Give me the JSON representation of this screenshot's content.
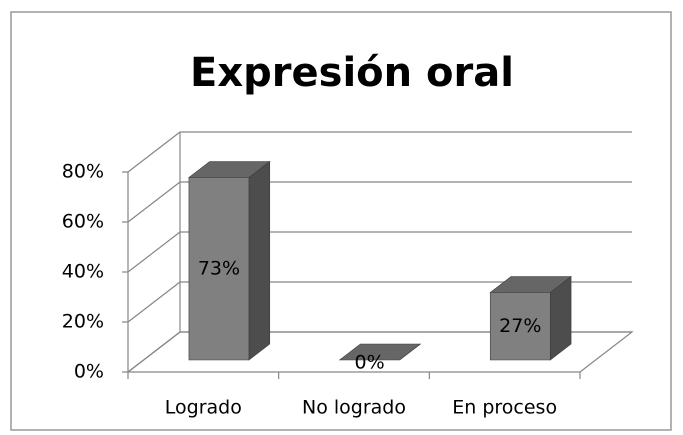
{
  "chart_data": {
    "type": "bar3d",
    "title": "Expresión oral",
    "categories": [
      "Logrado",
      "No logrado",
      "En proceso"
    ],
    "values": [
      73,
      0,
      27
    ],
    "value_labels": [
      "73%",
      "0%",
      "27%"
    ],
    "color": "#808080",
    "ylim": [
      0,
      80
    ],
    "yticks": [
      {
        "value": 0,
        "label": "0%"
      },
      {
        "value": 20,
        "label": "20%"
      },
      {
        "value": 40,
        "label": "40%"
      },
      {
        "value": 60,
        "label": "60%"
      },
      {
        "value": 80,
        "label": "80%"
      }
    ],
    "grid": true
  }
}
